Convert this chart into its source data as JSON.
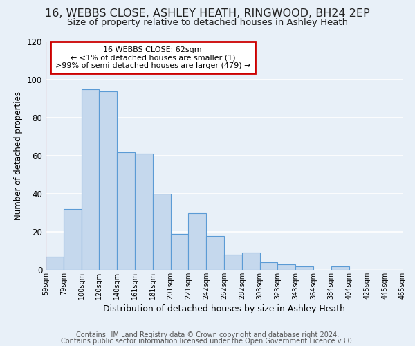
{
  "title": "16, WEBBS CLOSE, ASHLEY HEATH, RINGWOOD, BH24 2EP",
  "subtitle": "Size of property relative to detached houses in Ashley Heath",
  "xlabel": "Distribution of detached houses by size in Ashley Heath",
  "ylabel": "Number of detached properties",
  "footer_line1": "Contains HM Land Registry data © Crown copyright and database right 2024.",
  "footer_line2": "Contains public sector information licensed under the Open Government Licence v3.0.",
  "annotation_line1": "16 WEBBS CLOSE: 62sqm",
  "annotation_line2": "← <1% of detached houses are smaller (1)",
  "annotation_line3": ">99% of semi-detached houses are larger (479) →",
  "bin_labels": [
    "59sqm",
    "79sqm",
    "100sqm",
    "120sqm",
    "140sqm",
    "161sqm",
    "181sqm",
    "201sqm",
    "221sqm",
    "242sqm",
    "262sqm",
    "282sqm",
    "303sqm",
    "323sqm",
    "343sqm",
    "364sqm",
    "384sqm",
    "404sqm",
    "425sqm",
    "445sqm",
    "465sqm"
  ],
  "bar_values": [
    7,
    32,
    95,
    94,
    62,
    61,
    40,
    19,
    30,
    18,
    8,
    9,
    4,
    3,
    2,
    0,
    2,
    0,
    0,
    0
  ],
  "bar_color": "#c5d8ed",
  "bar_edge_color": "#5b9bd5",
  "ylim": [
    0,
    120
  ],
  "yticks": [
    0,
    20,
    40,
    60,
    80,
    100,
    120
  ],
  "annotation_box_color": "#ffffff",
  "annotation_box_edge": "#cc0000",
  "bg_color": "#e8f0f8",
  "grid_color": "#ffffff",
  "title_fontsize": 11.5,
  "subtitle_fontsize": 9.5,
  "footer_fontsize": 7
}
